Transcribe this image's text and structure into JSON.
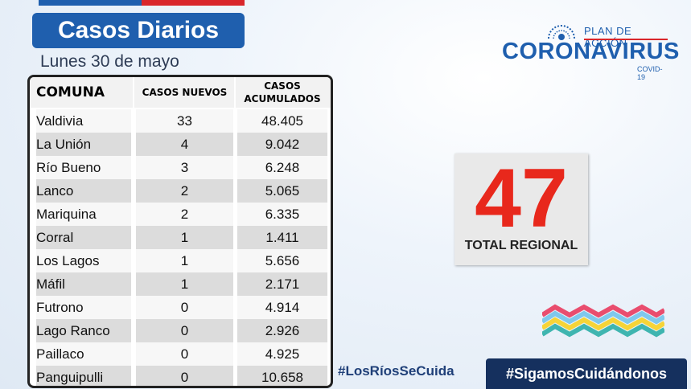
{
  "header": {
    "title": "Casos Diarios",
    "date": "Lunes 30 de mayo"
  },
  "logo": {
    "plan": "PLAN DE ACCIÓN",
    "brand": "CORONAVIRUS",
    "sub": "COVID-19"
  },
  "table": {
    "headers": {
      "comuna": "COMUNA",
      "nuevos": "CASOS NUEVOS",
      "acumulados_line1": "CASOS",
      "acumulados_line2": "ACUMULADOS"
    },
    "rows": [
      {
        "comuna": "Valdivia",
        "nuevos": "33",
        "acumulados": "48.405"
      },
      {
        "comuna": "La Unión",
        "nuevos": "4",
        "acumulados": "9.042"
      },
      {
        "comuna": "Río Bueno",
        "nuevos": "3",
        "acumulados": "6.248"
      },
      {
        "comuna": "Lanco",
        "nuevos": "2",
        "acumulados": "5.065"
      },
      {
        "comuna": "Mariquina",
        "nuevos": "2",
        "acumulados": "6.335"
      },
      {
        "comuna": "Corral",
        "nuevos": "1",
        "acumulados": "1.411"
      },
      {
        "comuna": "Los Lagos",
        "nuevos": "1",
        "acumulados": "5.656"
      },
      {
        "comuna": "Máfil",
        "nuevos": "1",
        "acumulados": "2.171"
      },
      {
        "comuna": "Futrono",
        "nuevos": "0",
        "acumulados": "4.914"
      },
      {
        "comuna": "Lago Ranco",
        "nuevos": "0",
        "acumulados": "2.926"
      },
      {
        "comuna": "Paillaco",
        "nuevos": "0",
        "acumulados": "4.925"
      },
      {
        "comuna": "Panguipulli",
        "nuevos": "0",
        "acumulados": "10.658"
      }
    ]
  },
  "total": {
    "value": "47",
    "label": "TOTAL REGIONAL"
  },
  "hashtags": {
    "left": "#LosRíosSeCuida",
    "right": "#SigamosCuidándonos"
  },
  "colors": {
    "brand_blue": "#1f5fae",
    "navy": "#15305e",
    "accent_red": "#e8281c"
  }
}
